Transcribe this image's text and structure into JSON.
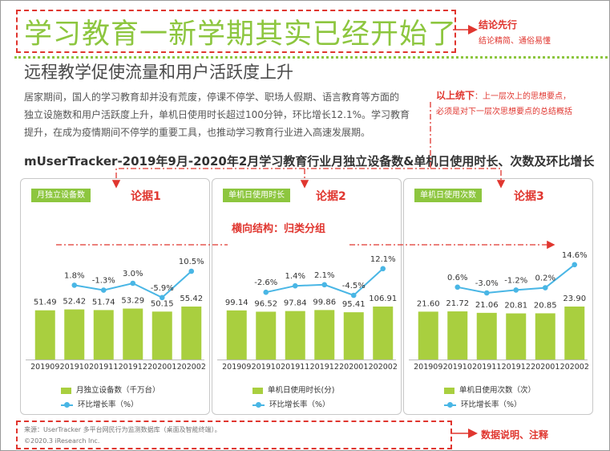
{
  "header": {
    "title": "学习教育一新学期其实已经开始了",
    "subtitle": "远程教学促使流量和用户活跃度上升",
    "body_lines": [
      "居家期间，国人的学习教育却并没有荒废，停课不停学、职场人假期、语言教育等方面的",
      "独立设施数和用户活跃度上升，单机日使用时长超过100分钟，环比增长12.1%。学习教育",
      "提升，在成为疫情期间不停学的重要工具，也推动学习教育行业进入高速发展期。"
    ]
  },
  "annotations": {
    "conclusion_title": "结论先行",
    "conclusion_sub": "结论精简、通俗易懂",
    "summary_title": "以上统下",
    "summary_line1": "：上一层次上的思想要点，",
    "summary_line2": "必须是对下一层次思想要点的总结概括",
    "horizontal": "横向结构：归类分组",
    "evidence": [
      "论据1",
      "论据2",
      "论据3"
    ],
    "data_note": "数据说明、注释"
  },
  "chart_heading": "mUserTracker-2019年9月-2020年2月学习教育行业月独立设备数&单机日使用时长、次数及环比增长",
  "colors": {
    "green": "#8dc63f",
    "bar": "#a9cf3f",
    "line": "#49b6e5",
    "red": "#e0362f"
  },
  "chart_data": [
    {
      "type": "bar",
      "badge": "月独立设备数",
      "categories": [
        "201909",
        "201910",
        "201911",
        "201912",
        "202001",
        "202002"
      ],
      "bar_series": {
        "name": "月独立设备数（千万台）",
        "values": [
          51.49,
          52.42,
          51.74,
          53.29,
          50.15,
          55.42
        ],
        "labels": [
          "51.49",
          "52.42",
          "51.74",
          "53.29",
          "50.15",
          "55.42"
        ]
      },
      "line_series": {
        "name": "环比增长率（%）",
        "values": [
          1.8,
          -1.3,
          3.0,
          -5.9,
          10.5
        ],
        "labels": [
          "1.8%",
          "-1.3%",
          "3.0%",
          "-5.9%",
          "10.5%"
        ]
      }
    },
    {
      "type": "bar",
      "badge": "单机日使用时长",
      "categories": [
        "201909",
        "201910",
        "201911",
        "201912",
        "202001",
        "202002"
      ],
      "bar_series": {
        "name": "单机日使用时长(分)",
        "values": [
          99.14,
          96.52,
          97.84,
          99.86,
          95.41,
          106.91
        ],
        "labels": [
          "99.14",
          "96.52",
          "97.84",
          "99.86",
          "95.41",
          "106.91"
        ]
      },
      "line_series": {
        "name": "环比增长率（%）",
        "values": [
          -2.6,
          1.4,
          2.1,
          -4.5,
          12.1
        ],
        "labels": [
          "-2.6%",
          "1.4%",
          "2.1%",
          "-4.5%",
          "12.1%"
        ]
      }
    },
    {
      "type": "bar",
      "badge": "单机日使用次数",
      "categories": [
        "201909",
        "201910",
        "201911",
        "201912",
        "202001",
        "202002"
      ],
      "bar_series": {
        "name": "单机日使用次数（次）",
        "values": [
          21.6,
          21.72,
          21.06,
          20.81,
          20.85,
          23.9
        ],
        "labels": [
          "21.60",
          "21.72",
          "21.06",
          "20.81",
          "20.85",
          "23.90"
        ]
      },
      "line_series": {
        "name": "环比增长率（%）",
        "values": [
          0.6,
          -3.0,
          -1.2,
          0.2,
          14.6
        ],
        "labels": [
          "0.6%",
          "-3.0%",
          "-1.2%",
          "0.2%",
          "14.6%"
        ]
      }
    }
  ],
  "footer": {
    "source": "来源：UserTracker 多平台网民行为监测数据库（桌面及智能终端）。",
    "copyright": "©2020.3 iResearch Inc."
  }
}
